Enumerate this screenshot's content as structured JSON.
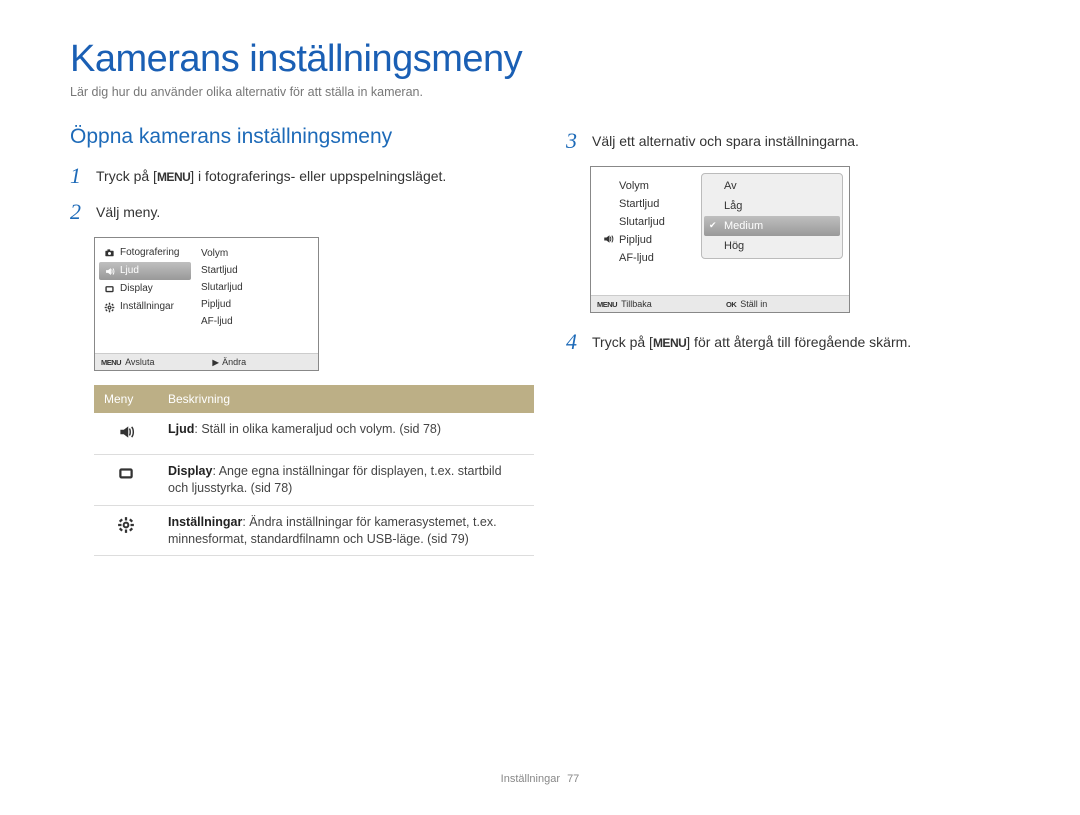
{
  "page_title": "Kamerans inställningsmeny",
  "page_sub": "Lär dig hur du använder olika alternativ för att ställa in kameran.",
  "section_heading": "Öppna kamerans inställningsmeny",
  "steps": {
    "s1_pre": "Tryck på [",
    "s1_badge": "MENU",
    "s1_post": "] i fotograferings- eller uppspelningsläget.",
    "s2": "Välj meny.",
    "s3": "Välj ett alternativ och spara inställningarna.",
    "s4_pre": "Tryck på [",
    "s4_badge": "MENU",
    "s4_post": "] för att återgå till föregående skärm."
  },
  "screen1": {
    "left": [
      {
        "icon": "camera",
        "label": "Fotografering"
      },
      {
        "icon": "sound",
        "label": "Ljud",
        "selected": true
      },
      {
        "icon": "display",
        "label": "Display"
      },
      {
        "icon": "gear",
        "label": "Inställningar"
      }
    ],
    "right": [
      "Volym",
      "Startljud",
      "Slutarljud",
      "Pipljud",
      "AF-ljud"
    ],
    "foot_l_key": "MENU",
    "foot_l": "Avsluta",
    "foot_r_key": "▶",
    "foot_r": "Ändra"
  },
  "screen2": {
    "left": [
      {
        "icon": "",
        "label": "Volym"
      },
      {
        "icon": "",
        "label": "Startljud"
      },
      {
        "icon": "",
        "label": "Slutarljud"
      },
      {
        "icon": "sound",
        "label": "Pipljud"
      },
      {
        "icon": "",
        "label": "AF-ljud"
      }
    ],
    "options": [
      {
        "label": "Av"
      },
      {
        "label": "Låg"
      },
      {
        "label": "Medium",
        "checked": true,
        "selected": true
      },
      {
        "label": "Hög"
      }
    ],
    "foot_l_key": "MENU",
    "foot_l": "Tillbaka",
    "foot_r_key": "OK",
    "foot_r": "Ställ in"
  },
  "table": {
    "head": {
      "c1": "Meny",
      "c2": "Beskrivning"
    },
    "rows": [
      {
        "icon": "sound",
        "bold": "Ljud",
        "text": ": Ställ in olika kameraljud och volym. (sid 78)"
      },
      {
        "icon": "display",
        "bold": "Display",
        "text": ": Ange egna inställningar för displayen, t.ex. startbild och ljusstyrka. (sid 78)"
      },
      {
        "icon": "gear",
        "bold": "Inställningar",
        "text": ": Ändra inställningar för kamerasystemet, t.ex. minnesformat, standardfilnamn och USB-läge. (sid 79)"
      }
    ]
  },
  "footer": {
    "label": "Inställningar",
    "page": "77"
  }
}
